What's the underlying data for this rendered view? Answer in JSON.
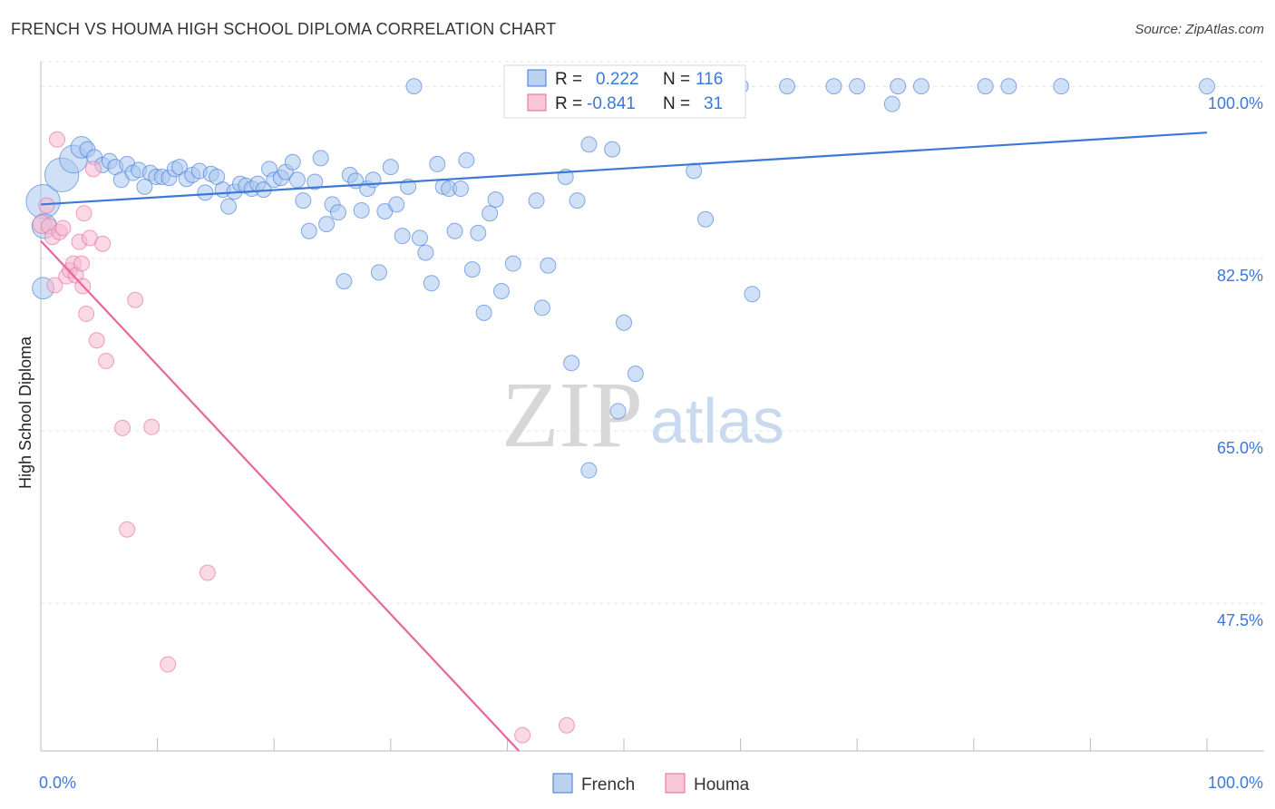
{
  "title": "FRENCH VS HOUMA HIGH SCHOOL DIPLOMA CORRELATION CHART",
  "source": "Source: ZipAtlas.com",
  "watermark": {
    "part1": "ZIP",
    "part2": "atlas"
  },
  "colors": {
    "blue": "#3c78d8",
    "blue_fill": "#a9c6ee",
    "pink": "#e8679b",
    "pink_fill": "#f6b8cd",
    "grid": "#e4e4e4",
    "axis": "#bbbbbb"
  },
  "chart_data": {
    "type": "scatter",
    "title": "FRENCH VS HOUMA HIGH SCHOOL DIPLOMA CORRELATION CHART",
    "xlabel": "",
    "ylabel": "High School Diploma",
    "xlim": [
      0,
      100
    ],
    "ylim": [
      32.5,
      102.5
    ],
    "x_tick_labels": [
      "0.0%",
      "100.0%"
    ],
    "y_ticks": [
      100.0,
      82.5,
      65.0,
      47.5
    ],
    "y_tick_labels": [
      "100.0%",
      "82.5%",
      "65.0%",
      "47.5%"
    ],
    "grid": true,
    "legend_position": "bottom-center",
    "stats": [
      {
        "r_label": "R =",
        "r_value": "0.222",
        "n_label": "N =",
        "n_value": "116"
      },
      {
        "r_label": "R =",
        "r_value": "-0.841",
        "n_label": "N =",
        "n_value": "31"
      }
    ],
    "series": [
      {
        "name": "French",
        "color": "#3c78d8",
        "trend": [
          [
            0,
            88.0
          ],
          [
            100,
            95.3
          ]
        ],
        "points": [
          [
            0.2,
            88.3,
            2.2
          ],
          [
            1.8,
            91.0,
            2.2
          ],
          [
            2.8,
            92.6,
            1.8
          ],
          [
            3.5,
            93.8,
            1.4
          ],
          [
            0.3,
            85.8,
            1.6
          ],
          [
            0.2,
            79.5,
            1.4
          ],
          [
            4.0,
            93.6,
            1.0
          ],
          [
            4.6,
            92.8,
            1.0
          ],
          [
            5.3,
            92.0,
            1.0
          ],
          [
            5.9,
            92.4,
            1.0
          ],
          [
            6.4,
            91.8,
            1.0
          ],
          [
            6.9,
            90.5,
            1.0
          ],
          [
            7.4,
            92.1,
            1.0
          ],
          [
            7.9,
            91.2,
            1.0
          ],
          [
            8.4,
            91.5,
            1.0
          ],
          [
            8.9,
            89.8,
            1.0
          ],
          [
            9.4,
            91.2,
            1.0
          ],
          [
            9.9,
            90.8,
            1.0
          ],
          [
            10.4,
            90.8,
            1.0
          ],
          [
            11.0,
            90.7,
            1.0
          ],
          [
            11.5,
            91.6,
            1.0
          ],
          [
            11.9,
            91.8,
            1.0
          ],
          [
            12.5,
            90.6,
            1.0
          ],
          [
            13.0,
            91.0,
            1.0
          ],
          [
            13.6,
            91.4,
            1.0
          ],
          [
            14.1,
            89.2,
            1.0
          ],
          [
            14.6,
            91.1,
            1.0
          ],
          [
            15.1,
            90.8,
            1.0
          ],
          [
            15.6,
            89.5,
            1.0
          ],
          [
            16.1,
            87.8,
            1.0
          ],
          [
            16.6,
            89.3,
            1.0
          ],
          [
            17.1,
            90.1,
            1.0
          ],
          [
            17.6,
            89.9,
            1.0
          ],
          [
            18.1,
            89.6,
            1.0
          ],
          [
            18.6,
            90.1,
            1.0
          ],
          [
            19.1,
            89.5,
            1.0
          ],
          [
            19.6,
            91.6,
            1.0
          ],
          [
            20.0,
            90.5,
            1.0
          ],
          [
            20.6,
            90.7,
            1.0
          ],
          [
            21.0,
            91.3,
            1.0
          ],
          [
            21.6,
            92.3,
            1.0
          ],
          [
            22.0,
            90.5,
            1.0
          ],
          [
            22.5,
            88.4,
            1.0
          ],
          [
            23.0,
            85.3,
            1.0
          ],
          [
            23.5,
            90.3,
            1.0
          ],
          [
            24.0,
            92.7,
            1.0
          ],
          [
            24.5,
            86.0,
            1.0
          ],
          [
            25.0,
            88.0,
            1.0
          ],
          [
            25.5,
            87.2,
            1.0
          ],
          [
            26.0,
            80.2,
            1.0
          ],
          [
            26.5,
            91.0,
            1.0
          ],
          [
            27.0,
            90.4,
            1.0
          ],
          [
            27.5,
            87.4,
            1.0
          ],
          [
            28.0,
            89.6,
            1.0
          ],
          [
            28.5,
            90.5,
            1.0
          ],
          [
            29.0,
            81.1,
            1.0
          ],
          [
            29.5,
            87.3,
            1.0
          ],
          [
            30.0,
            91.8,
            1.0
          ],
          [
            30.5,
            88.0,
            1.0
          ],
          [
            31.0,
            84.8,
            1.0
          ],
          [
            31.5,
            89.8,
            1.0
          ],
          [
            32.0,
            100.0,
            1.0
          ],
          [
            32.5,
            84.6,
            1.0
          ],
          [
            33.0,
            83.1,
            1.0
          ],
          [
            33.5,
            80.0,
            1.0
          ],
          [
            34.0,
            92.1,
            1.0
          ],
          [
            34.5,
            89.8,
            1.0
          ],
          [
            35.0,
            89.6,
            1.0
          ],
          [
            35.5,
            85.3,
            1.0
          ],
          [
            36.0,
            89.6,
            1.0
          ],
          [
            36.5,
            92.5,
            1.0
          ],
          [
            37.0,
            81.4,
            1.0
          ],
          [
            37.5,
            85.1,
            1.0
          ],
          [
            38.0,
            77.0,
            1.0
          ],
          [
            38.5,
            87.1,
            1.0
          ],
          [
            39.0,
            88.5,
            1.0
          ],
          [
            39.5,
            79.2,
            1.0
          ],
          [
            40.5,
            82.0,
            1.0
          ],
          [
            41.0,
            100.0,
            1.0
          ],
          [
            42.0,
            100.0,
            1.0
          ],
          [
            42.5,
            88.4,
            1.0
          ],
          [
            43.0,
            77.5,
            1.0
          ],
          [
            43.5,
            81.8,
            1.0
          ],
          [
            44.0,
            100.0,
            1.0
          ],
          [
            45.0,
            90.8,
            1.0
          ],
          [
            45.5,
            71.9,
            1.0
          ],
          [
            46.0,
            100.0,
            1.0
          ],
          [
            46.0,
            88.4,
            1.0
          ],
          [
            47.0,
            94.1,
            1.0
          ],
          [
            47.0,
            61.0,
            1.0
          ],
          [
            48.0,
            100.0,
            1.0
          ],
          [
            49.0,
            93.6,
            1.0
          ],
          [
            49.5,
            67.0,
            1.0
          ],
          [
            50.0,
            76.0,
            1.0
          ],
          [
            51.0,
            70.8,
            1.0
          ],
          [
            53.0,
            100.0,
            1.0
          ],
          [
            55.0,
            100.0,
            1.0
          ],
          [
            56.0,
            91.4,
            1.0
          ],
          [
            57.0,
            100.0,
            1.0
          ],
          [
            57.0,
            86.5,
            1.0
          ],
          [
            60.0,
            100.0,
            1.0
          ],
          [
            61.0,
            78.9,
            1.0
          ],
          [
            64.0,
            100.0,
            1.0
          ],
          [
            68.0,
            100.0,
            1.0
          ],
          [
            70.0,
            100.0,
            1.0
          ],
          [
            73.0,
            98.2,
            1.0
          ],
          [
            73.5,
            100.0,
            1.0
          ],
          [
            75.5,
            100.0,
            1.0
          ],
          [
            81.0,
            100.0,
            1.0
          ],
          [
            83.0,
            100.0,
            1.0
          ],
          [
            87.5,
            100.0,
            1.0
          ],
          [
            100.0,
            100.0,
            1.0
          ]
        ]
      },
      {
        "name": "Houma",
        "color": "#e8679b",
        "trend": [
          [
            0,
            84.3
          ],
          [
            41.0,
            32.5
          ]
        ],
        "points": [
          [
            0.1,
            86.0,
            1.2
          ],
          [
            0.5,
            87.9,
            1.0
          ],
          [
            0.7,
            85.8,
            1.0
          ],
          [
            1.0,
            84.7,
            1.0
          ],
          [
            1.2,
            79.8,
            1.0
          ],
          [
            1.4,
            94.6,
            1.0
          ],
          [
            1.6,
            85.2,
            1.0
          ],
          [
            1.9,
            85.6,
            1.0
          ],
          [
            2.2,
            80.7,
            1.0
          ],
          [
            2.5,
            81.3,
            1.0
          ],
          [
            2.8,
            82.0,
            1.0
          ],
          [
            3.0,
            80.8,
            1.0
          ],
          [
            3.3,
            84.2,
            1.0
          ],
          [
            3.5,
            82.0,
            1.0
          ],
          [
            3.6,
            79.7,
            1.0
          ],
          [
            3.7,
            87.1,
            1.0
          ],
          [
            3.9,
            76.9,
            1.0
          ],
          [
            4.2,
            84.6,
            1.0
          ],
          [
            4.5,
            91.6,
            1.0
          ],
          [
            4.8,
            74.2,
            1.0
          ],
          [
            5.3,
            84.0,
            1.0
          ],
          [
            5.6,
            72.1,
            1.0
          ],
          [
            7.0,
            65.3,
            1.0
          ],
          [
            7.4,
            55.0,
            1.0
          ],
          [
            8.1,
            78.3,
            1.0
          ],
          [
            9.5,
            65.4,
            1.0
          ],
          [
            10.9,
            41.3,
            1.0
          ],
          [
            14.3,
            50.6,
            1.0
          ],
          [
            41.3,
            34.1,
            1.0
          ],
          [
            45.1,
            35.1,
            1.0
          ]
        ]
      }
    ]
  }
}
